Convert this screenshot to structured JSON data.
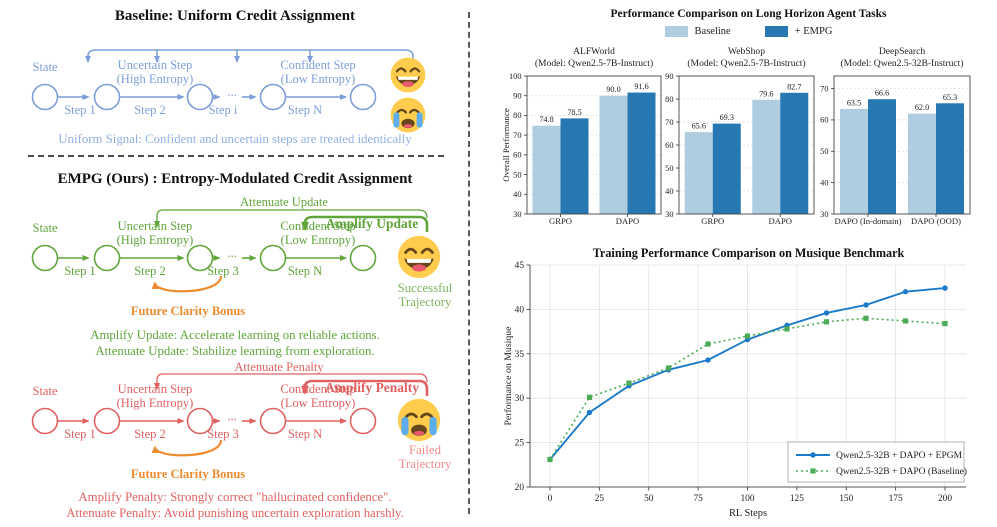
{
  "figure": {
    "left": {
      "baseline": {
        "title": "Baseline: Uniform Credit Assignment",
        "state": "State",
        "uncertain": [
          "Uncertain Step",
          "(High Entropy)"
        ],
        "confident": [
          "Confident Step",
          "(Low Entropy)"
        ],
        "steps": [
          "Step 1",
          "Step 2",
          "Step i",
          "Step N"
        ],
        "ellipsis": "...",
        "caption": "Uniform Signal: Confident and uncertain steps are treated identically",
        "emojis": [
          "laughing-face",
          "crying-face"
        ]
      },
      "empg": {
        "title": "EMPG (Ours) : Entropy-Modulated Credit Assignment",
        "state": "State",
        "uncertain": [
          "Uncertain Step",
          "(High Entropy)"
        ],
        "confident": [
          "Confident Step",
          "(Low Entropy)"
        ],
        "steps": [
          "Step 1",
          "Step 2",
          "Step 3",
          "Step N"
        ],
        "ellipsis": "...",
        "attenuate_label": "Attenuate Update",
        "amplify_label": "Amplify Update",
        "bonus_label": "Future Clarity Bonus",
        "outcome": [
          "Successful",
          "Trajectory"
        ],
        "emoji": "laughing-face",
        "captions": [
          "Amplify Update: Accelerate learning on reliable actions.",
          "Attenuate Update: Stabilize learning from exploration."
        ]
      },
      "failed": {
        "state": "State",
        "uncertain": [
          "Uncertain Step",
          "(High Entropy)"
        ],
        "confident": [
          "Confident Step",
          "(Low Entropy)"
        ],
        "steps": [
          "Step 1",
          "Step 2",
          "Step 3",
          "Step N"
        ],
        "ellipsis": "...",
        "attenuate_label": "Attenuate Penalty",
        "amplify_label": "Amplify Penalty",
        "bonus_label": "Future Clarity Bonus",
        "outcome": [
          "Failed",
          "Trajectory"
        ],
        "emoji": "crying-face",
        "captions": [
          "Amplify Penalty: Strongly correct \"hallucinated confidence\".",
          "Attenuate Penalty: Avoid punishing uncertain exploration harshly."
        ]
      }
    }
  },
  "colors": {
    "blue": "#7d9ed8",
    "blue_light": "#8fb0e2",
    "green": "#5fa53a",
    "green_light": "#7bb45b",
    "red": "#e06161",
    "red_light": "#ee8a8a",
    "orange": "#ee8b2f",
    "bar_light": "#aecde1",
    "bar_dark": "#2677b2"
  },
  "chart_data": [
    {
      "type": "bar",
      "title": "Performance Comparison on Long Horizon Agent Tasks",
      "ylabel": "Overall Performance",
      "legend": [
        {
          "label": "Baseline",
          "color": "#aecde1"
        },
        {
          "label": "+ EMPG",
          "color": "#2677b2"
        }
      ],
      "series_colors": [
        "#aecde1",
        "#2677b2"
      ],
      "grid": true,
      "subplots": [
        {
          "title": "ALFWorld",
          "subtitle": "(Model: Qwen2.5-7B-Instruct)",
          "categories": [
            "GRPO",
            "DAPO"
          ],
          "series": [
            {
              "name": "Baseline",
              "values": [
                74.8,
                90.0
              ]
            },
            {
              "name": "+ EMPG",
              "values": [
                78.5,
                91.6
              ]
            }
          ],
          "ylim": [
            30,
            100
          ],
          "yticks": [
            30,
            40,
            50,
            60,
            70,
            80,
            90,
            100
          ]
        },
        {
          "title": "WebShop",
          "subtitle": "(Model: Qwen2.5-7B-Instruct)",
          "categories": [
            "GRPO",
            "DAPO"
          ],
          "series": [
            {
              "name": "Baseline",
              "values": [
                65.6,
                79.6
              ]
            },
            {
              "name": "+ EMPG",
              "values": [
                69.3,
                82.7
              ]
            }
          ],
          "ylim": [
            30,
            90
          ],
          "yticks": [
            30,
            40,
            50,
            60,
            70,
            80,
            90
          ]
        },
        {
          "title": "DeepSearch",
          "subtitle": "(Model: Qwen2.5-32B-Instruct)",
          "categories": [
            "DAPO (In-domain)",
            "DAPO (OOD)"
          ],
          "series": [
            {
              "name": "Baseline",
              "values": [
                63.5,
                62.0
              ]
            },
            {
              "name": "+ EMPG",
              "values": [
                66.6,
                65.3
              ]
            }
          ],
          "ylim": [
            30,
            74
          ],
          "yticks": [
            30,
            40,
            50,
            60,
            70
          ]
        }
      ]
    },
    {
      "type": "line",
      "title": "Training Performance Comparison on Musique Benchmark",
      "xlabel": "RL Steps",
      "ylabel": "Performance on Musique",
      "xlim": [
        -10,
        210
      ],
      "ylim": [
        20,
        45
      ],
      "xticks": [
        0,
        25,
        50,
        75,
        100,
        125,
        150,
        175,
        200
      ],
      "yticks": [
        20,
        25,
        30,
        35,
        40,
        45
      ],
      "grid": true,
      "legend_position": "lower right",
      "x": [
        0,
        20,
        40,
        60,
        80,
        100,
        120,
        140,
        160,
        180,
        200
      ],
      "series": [
        {
          "name": "Qwen2.5-32B + DAPO + EPGM",
          "color": "#1b7ac9",
          "style": "solid",
          "marker": "circle",
          "values": [
            23.1,
            28.4,
            31.4,
            33.2,
            34.3,
            36.6,
            38.2,
            39.6,
            40.5,
            42.0,
            42.4
          ]
        },
        {
          "name": "Qwen2.5-32B + DAPO (Baseline)",
          "color": "#4cab56",
          "style": "dotted",
          "marker": "square",
          "values": [
            23.1,
            30.1,
            31.7,
            33.4,
            36.1,
            37.0,
            37.8,
            38.6,
            39.0,
            38.7,
            38.4
          ]
        }
      ]
    }
  ]
}
